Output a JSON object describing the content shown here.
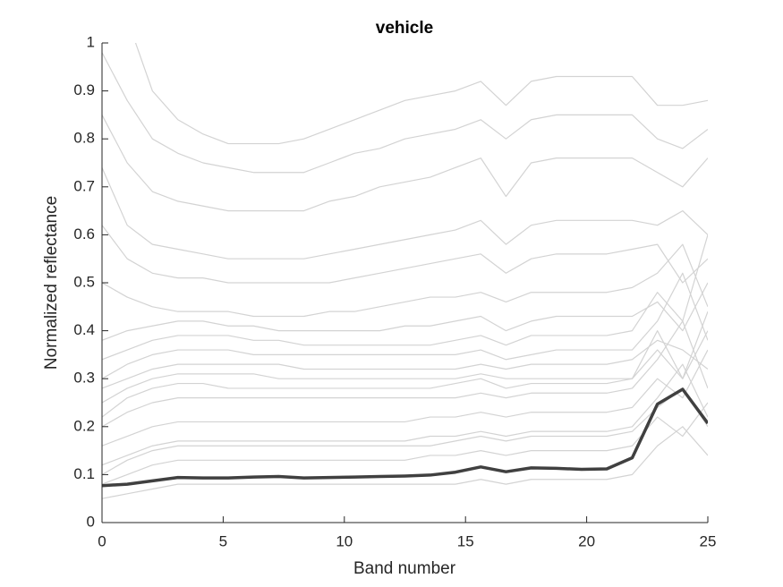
{
  "chart_data": {
    "type": "line",
    "title": "vehicle",
    "xlabel": "Band number",
    "ylabel": "Normalized reflectance",
    "x": [
      0,
      1.04,
      2.08,
      3.13,
      4.17,
      5.21,
      6.25,
      7.29,
      8.33,
      9.38,
      10.42,
      11.46,
      12.5,
      13.54,
      14.58,
      15.63,
      16.67,
      17.71,
      18.75,
      19.79,
      20.83,
      21.88,
      22.92,
      23.96,
      25
    ],
    "xlim": [
      0,
      25
    ],
    "xticks": [
      0,
      5,
      10,
      15,
      20,
      25
    ],
    "ylim": [
      0,
      1
    ],
    "yticks": [
      0,
      0.1,
      0.2,
      0.3,
      0.4,
      0.5,
      0.6,
      0.7,
      0.8,
      0.9,
      1
    ],
    "series": [
      {
        "color": "#d3d3d3",
        "values": [
          1.2,
          1.05,
          0.9,
          0.84,
          0.81,
          0.79,
          0.79,
          0.79,
          0.8,
          0.82,
          0.84,
          0.86,
          0.88,
          0.89,
          0.9,
          0.92,
          0.87,
          0.92,
          0.93,
          0.93,
          0.93,
          0.93,
          0.87,
          0.87,
          0.88
        ]
      },
      {
        "color": "#d3d3d3",
        "values": [
          0.98,
          0.88,
          0.8,
          0.77,
          0.75,
          0.74,
          0.73,
          0.73,
          0.73,
          0.75,
          0.77,
          0.78,
          0.8,
          0.81,
          0.82,
          0.84,
          0.8,
          0.84,
          0.85,
          0.85,
          0.85,
          0.85,
          0.8,
          0.78,
          0.82
        ]
      },
      {
        "color": "#d3d3d3",
        "values": [
          0.85,
          0.75,
          0.69,
          0.67,
          0.66,
          0.65,
          0.65,
          0.65,
          0.65,
          0.67,
          0.68,
          0.7,
          0.71,
          0.72,
          0.74,
          0.76,
          0.68,
          0.75,
          0.76,
          0.76,
          0.76,
          0.76,
          0.73,
          0.7,
          0.76
        ]
      },
      {
        "color": "#d3d3d3",
        "values": [
          0.74,
          0.62,
          0.58,
          0.57,
          0.56,
          0.55,
          0.55,
          0.55,
          0.55,
          0.56,
          0.57,
          0.58,
          0.59,
          0.6,
          0.61,
          0.63,
          0.58,
          0.62,
          0.63,
          0.63,
          0.63,
          0.63,
          0.62,
          0.65,
          0.6
        ]
      },
      {
        "color": "#d3d3d3",
        "values": [
          0.62,
          0.55,
          0.52,
          0.51,
          0.51,
          0.5,
          0.5,
          0.5,
          0.5,
          0.5,
          0.51,
          0.52,
          0.53,
          0.54,
          0.55,
          0.56,
          0.52,
          0.55,
          0.56,
          0.56,
          0.56,
          0.57,
          0.58,
          0.5,
          0.55
        ]
      },
      {
        "color": "#d3d3d3",
        "values": [
          0.5,
          0.47,
          0.45,
          0.44,
          0.44,
          0.44,
          0.43,
          0.43,
          0.43,
          0.44,
          0.44,
          0.45,
          0.46,
          0.47,
          0.47,
          0.48,
          0.46,
          0.48,
          0.48,
          0.48,
          0.48,
          0.49,
          0.52,
          0.58,
          0.45
        ]
      },
      {
        "color": "#d3d3d3",
        "values": [
          0.38,
          0.4,
          0.41,
          0.42,
          0.42,
          0.41,
          0.41,
          0.4,
          0.4,
          0.4,
          0.4,
          0.4,
          0.41,
          0.41,
          0.42,
          0.43,
          0.4,
          0.42,
          0.43,
          0.43,
          0.43,
          0.43,
          0.46,
          0.4,
          0.5
        ]
      },
      {
        "color": "#d3d3d3",
        "values": [
          0.34,
          0.36,
          0.38,
          0.39,
          0.39,
          0.39,
          0.38,
          0.38,
          0.37,
          0.37,
          0.37,
          0.37,
          0.37,
          0.37,
          0.38,
          0.39,
          0.37,
          0.39,
          0.39,
          0.39,
          0.39,
          0.4,
          0.48,
          0.42,
          0.6
        ]
      },
      {
        "color": "#d3d3d3",
        "values": [
          0.3,
          0.33,
          0.35,
          0.36,
          0.36,
          0.36,
          0.35,
          0.35,
          0.35,
          0.35,
          0.35,
          0.35,
          0.35,
          0.35,
          0.35,
          0.36,
          0.34,
          0.35,
          0.36,
          0.36,
          0.36,
          0.36,
          0.42,
          0.52,
          0.38
        ]
      },
      {
        "color": "#d3d3d3",
        "values": [
          0.28,
          0.3,
          0.32,
          0.33,
          0.33,
          0.33,
          0.33,
          0.33,
          0.32,
          0.32,
          0.32,
          0.32,
          0.32,
          0.32,
          0.32,
          0.33,
          0.32,
          0.33,
          0.33,
          0.33,
          0.33,
          0.34,
          0.38,
          0.36,
          0.32
        ]
      },
      {
        "color": "#d3d3d3",
        "values": [
          0.25,
          0.28,
          0.3,
          0.31,
          0.31,
          0.31,
          0.31,
          0.3,
          0.3,
          0.3,
          0.3,
          0.3,
          0.3,
          0.3,
          0.3,
          0.31,
          0.3,
          0.3,
          0.3,
          0.3,
          0.3,
          0.3,
          0.4,
          0.3,
          0.44
        ]
      },
      {
        "color": "#d3d3d3",
        "values": [
          0.22,
          0.26,
          0.28,
          0.29,
          0.29,
          0.28,
          0.28,
          0.28,
          0.28,
          0.28,
          0.28,
          0.28,
          0.28,
          0.28,
          0.29,
          0.3,
          0.28,
          0.29,
          0.29,
          0.29,
          0.29,
          0.3,
          0.36,
          0.3,
          0.4
        ]
      },
      {
        "color": "#d3d3d3",
        "values": [
          0.2,
          0.23,
          0.25,
          0.26,
          0.26,
          0.26,
          0.26,
          0.26,
          0.26,
          0.26,
          0.26,
          0.26,
          0.26,
          0.26,
          0.26,
          0.27,
          0.26,
          0.27,
          0.27,
          0.27,
          0.27,
          0.28,
          0.34,
          0.42,
          0.28
        ]
      },
      {
        "color": "#d3d3d3",
        "values": [
          0.16,
          0.18,
          0.2,
          0.21,
          0.21,
          0.21,
          0.21,
          0.21,
          0.21,
          0.21,
          0.21,
          0.21,
          0.21,
          0.22,
          0.22,
          0.23,
          0.22,
          0.23,
          0.23,
          0.23,
          0.23,
          0.24,
          0.3,
          0.26,
          0.36
        ]
      },
      {
        "color": "#d3d3d3",
        "values": [
          0.12,
          0.14,
          0.16,
          0.17,
          0.17,
          0.17,
          0.17,
          0.17,
          0.17,
          0.17,
          0.17,
          0.17,
          0.17,
          0.18,
          0.18,
          0.19,
          0.18,
          0.19,
          0.19,
          0.19,
          0.19,
          0.2,
          0.26,
          0.33,
          0.22
        ]
      },
      {
        "color": "#d3d3d3",
        "values": [
          0.1,
          0.13,
          0.15,
          0.16,
          0.16,
          0.16,
          0.16,
          0.16,
          0.16,
          0.16,
          0.16,
          0.16,
          0.16,
          0.16,
          0.17,
          0.18,
          0.17,
          0.18,
          0.18,
          0.18,
          0.18,
          0.19,
          0.24,
          0.28,
          0.2
        ]
      },
      {
        "color": "#d3d3d3",
        "values": [
          0.08,
          0.1,
          0.12,
          0.13,
          0.13,
          0.13,
          0.13,
          0.13,
          0.13,
          0.13,
          0.13,
          0.13,
          0.13,
          0.14,
          0.14,
          0.15,
          0.14,
          0.15,
          0.15,
          0.15,
          0.15,
          0.16,
          0.22,
          0.18,
          0.25
        ]
      },
      {
        "color": "#d3d3d3",
        "values": [
          0.05,
          0.06,
          0.07,
          0.08,
          0.08,
          0.08,
          0.08,
          0.08,
          0.08,
          0.08,
          0.08,
          0.08,
          0.08,
          0.08,
          0.08,
          0.09,
          0.08,
          0.09,
          0.09,
          0.09,
          0.09,
          0.1,
          0.16,
          0.2,
          0.14
        ]
      },
      {
        "color": "#404040",
        "values": [
          0.077,
          0.08,
          0.087,
          0.094,
          0.093,
          0.093,
          0.095,
          0.096,
          0.093,
          0.094,
          0.095,
          0.096,
          0.097,
          0.099,
          0.105,
          0.116,
          0.106,
          0.114,
          0.113,
          0.111,
          0.112,
          0.135,
          0.247,
          0.278,
          0.207
        ]
      }
    ]
  }
}
